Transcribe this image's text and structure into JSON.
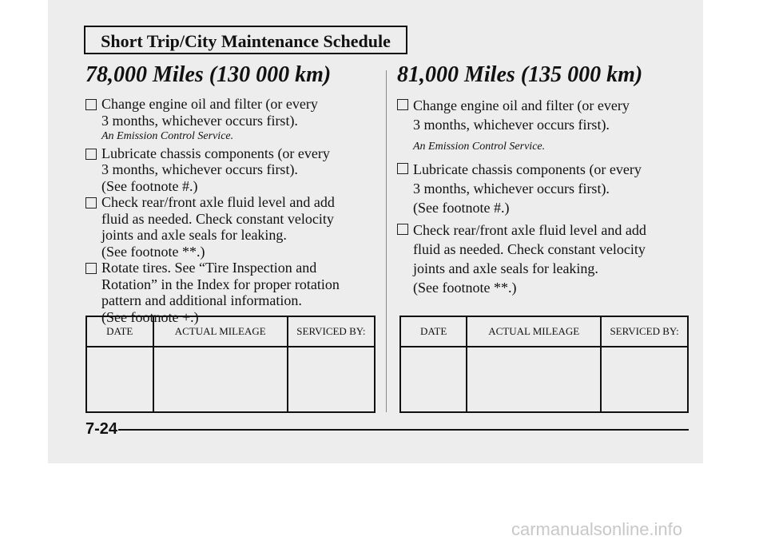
{
  "header": {
    "title": "Short Trip/City Maintenance Schedule"
  },
  "columns": [
    {
      "title": "78,000 Miles (130 000 km)",
      "items": [
        {
          "lines": [
            "Change engine oil and filter (or every",
            "3 months, whichever occurs first)."
          ],
          "note": "An Emission Control Service."
        },
        {
          "lines": [
            "Lubricate chassis components (or every",
            "3 months, whichever occurs first).",
            "(See footnote #.)"
          ]
        },
        {
          "lines": [
            "Check rear/front axle fluid level and add",
            "fluid as needed. Check constant velocity",
            "joints and axle seals for leaking.",
            "(See footnote **.)"
          ]
        },
        {
          "lines": [
            "Rotate tires. See “Tire Inspection and",
            "Rotation” in the Index for proper rotation",
            "pattern and additional information.",
            "(See footnote +.)"
          ]
        }
      ],
      "table": {
        "headers": [
          "DATE",
          "ACTUAL MILEAGE",
          "SERVICED BY:"
        ]
      }
    },
    {
      "title": "81,000 Miles (135 000 km)",
      "items": [
        {
          "lines": [
            "Change engine oil and filter (or every",
            "3 months, whichever occurs first)."
          ],
          "note": "An Emission Control Service."
        },
        {
          "lines": [
            "Lubricate chassis components (or every",
            "3 months, whichever occurs first).",
            "(See footnote #.)"
          ]
        },
        {
          "lines": [
            "Check rear/front axle fluid level and add",
            "fluid as needed. Check constant velocity",
            "joints and axle seals for leaking.",
            "(See footnote **.)"
          ]
        }
      ],
      "table": {
        "headers": [
          "DATE",
          "ACTUAL MILEAGE",
          "SERVICED BY:"
        ]
      }
    }
  ],
  "footer": {
    "page": "7-24"
  },
  "watermark": "carmanualsonline.info"
}
